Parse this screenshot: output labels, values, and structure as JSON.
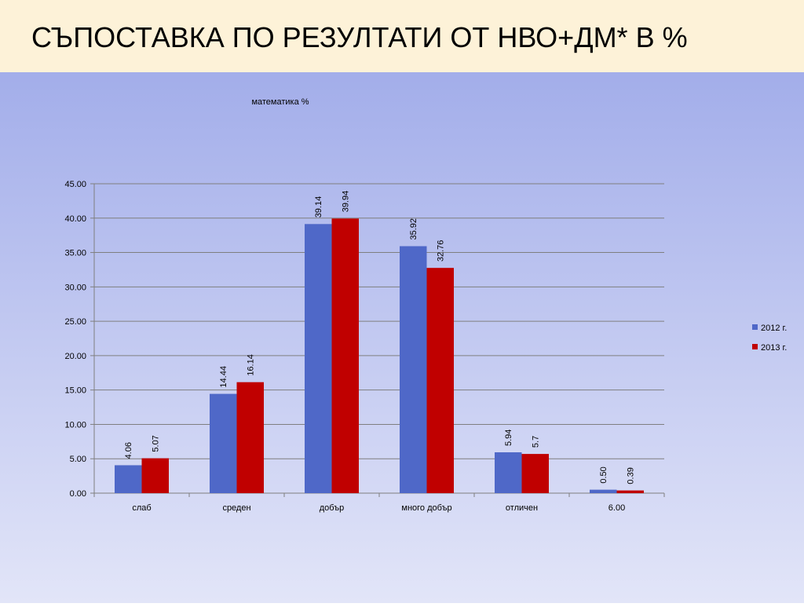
{
  "slide_title": "СЪПОСТАВКА ПО РЕЗУЛТАТИ ОТ НВО+ДМ* В %",
  "chart_data": {
    "type": "bar",
    "title": "математика %",
    "categories": [
      "слаб",
      "среден",
      "добър",
      "много добър",
      "отличен",
      "6.00"
    ],
    "series": [
      {
        "name": "2012 г.",
        "color": "#4f68c8",
        "values": [
          4.06,
          14.44,
          39.14,
          35.92,
          5.94,
          0.5
        ],
        "value_labels": [
          "4.06",
          "14.44",
          "39.14",
          "35.92",
          "5.94",
          "0.50"
        ]
      },
      {
        "name": "2013 г.",
        "color": "#c00000",
        "values": [
          5.07,
          16.14,
          39.94,
          32.76,
          5.7,
          0.39
        ]
      }
    ],
    "ylim": [
      0,
      45
    ],
    "yticks": [
      {
        "value": 0,
        "label": "0.00"
      },
      {
        "value": 5,
        "label": "5.00"
      },
      {
        "value": 10,
        "label": "10.00"
      },
      {
        "value": 15,
        "label": "15.00"
      },
      {
        "value": 20,
        "label": "20.00"
      },
      {
        "value": 25,
        "label": "25.00"
      },
      {
        "value": 30,
        "label": "30.00"
      },
      {
        "value": 35,
        "label": "35.00"
      },
      {
        "value": 40,
        "label": "40.00"
      },
      {
        "value": 45,
        "label": "45.00"
      }
    ],
    "grid": true,
    "legend": "right"
  }
}
